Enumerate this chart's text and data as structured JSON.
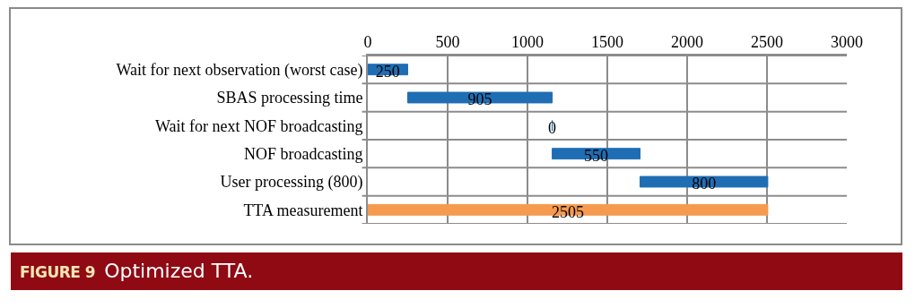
{
  "chart_data": {
    "type": "bar",
    "orientation": "horizontal",
    "categories": [
      "Wait for next observation (worst case)",
      "SBAS processing time",
      "Wait for next NOF broadcasting",
      "NOF broadcasting",
      "User processing (800)",
      "TTA measurement"
    ],
    "values": [
      250,
      905,
      0,
      550,
      800,
      2505
    ],
    "base": [
      0,
      250,
      1155,
      1155,
      1705,
      0
    ],
    "colors": [
      "#1f6eb4",
      "#1f6eb4",
      "#1f6eb4",
      "#1f6eb4",
      "#1f6eb4",
      "#f59a4f"
    ],
    "xlim": [
      0,
      3000
    ],
    "xticks": [
      0,
      500,
      1000,
      1500,
      2000,
      2500,
      3000
    ],
    "grid": true,
    "data_labels": true,
    "annotations": [
      "FIGURE 9",
      "Optimized TTA."
    ]
  }
}
